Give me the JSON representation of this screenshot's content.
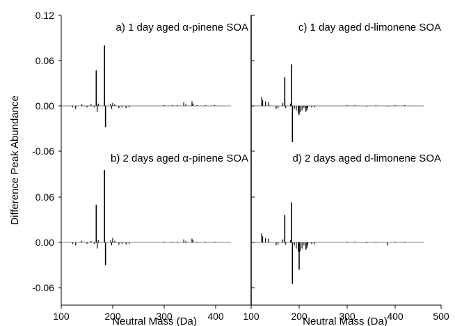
{
  "figure": {
    "ylabel": "Difference Peak Abundance",
    "xlabel": "Neutral Mass (Da)",
    "y_tick_labels_top": [
      "0.12",
      "0.06",
      "0.00",
      "-0.06"
    ],
    "y_tick_labels_bottom": [
      "0.06",
      "0.00",
      "-0.06"
    ],
    "x_tick_labels_left": [
      "100",
      "200",
      "300",
      "400"
    ],
    "x_tick_labels_right": [
      "100",
      "200",
      "300",
      "400",
      "500"
    ],
    "colors": {
      "bars": "#000000",
      "axes": "#000000",
      "background": "#ffffff"
    }
  },
  "chart_data": [
    {
      "type": "bar",
      "panel": "a",
      "title": "a) 1 day aged α-pinene SOA",
      "xlabel": "Neutral Mass (Da)",
      "ylabel": "Difference Peak Abundance",
      "xlim": [
        100,
        420
      ],
      "ylim": [
        -0.06,
        0.12
      ],
      "grid": false,
      "x": [
        122,
        128,
        140,
        150,
        158,
        164,
        168,
        170,
        172,
        184,
        186,
        196,
        198,
        200,
        204,
        212,
        218,
        226,
        232,
        300,
        316,
        326,
        338,
        342,
        354,
        356,
        364,
        380,
        398
      ],
      "values": [
        -0.002,
        -0.004,
        0.002,
        -0.002,
        0.002,
        -0.002,
        0.047,
        -0.008,
        0.003,
        0.08,
        -0.028,
        0.003,
        -0.004,
        0.004,
        0.002,
        -0.003,
        -0.002,
        -0.003,
        -0.002,
        0.001,
        0.001,
        0.001,
        0.005,
        0.002,
        0.006,
        0.003,
        0.001,
        0.001,
        0.001
      ]
    },
    {
      "type": "bar",
      "panel": "b",
      "title": "b) 2 days aged α-pinene SOA",
      "xlabel": "Neutral Mass (Da)",
      "ylabel": "Difference Peak Abundance",
      "xlim": [
        100,
        420
      ],
      "ylim": [
        -0.06,
        0.12
      ],
      "grid": false,
      "x": [
        122,
        128,
        140,
        150,
        158,
        164,
        168,
        170,
        172,
        184,
        186,
        196,
        198,
        200,
        204,
        212,
        218,
        226,
        232,
        300,
        316,
        326,
        338,
        342,
        354,
        356,
        364,
        380,
        398
      ],
      "values": [
        -0.002,
        -0.004,
        0.002,
        -0.002,
        0.002,
        -0.002,
        0.05,
        -0.008,
        0.003,
        0.096,
        -0.03,
        0.003,
        -0.004,
        0.006,
        0.002,
        -0.003,
        -0.002,
        -0.003,
        -0.002,
        0.001,
        0.001,
        0.001,
        0.004,
        0.002,
        0.005,
        0.003,
        0.001,
        0.001,
        0.001
      ]
    },
    {
      "type": "bar",
      "panel": "c",
      "title": "c) 1 day aged d-limonene SOA",
      "xlabel": "Neutral Mass (Da)",
      "ylabel": "Difference Peak Abundance",
      "xlim": [
        100,
        500
      ],
      "ylim": [
        -0.06,
        0.12
      ],
      "grid": false,
      "x": [
        122,
        124,
        130,
        136,
        152,
        156,
        166,
        170,
        172,
        182,
        184,
        186,
        190,
        194,
        198,
        200,
        202,
        206,
        210,
        214,
        216,
        218,
        226,
        232,
        300,
        316,
        340,
        360,
        384,
        400,
        420
      ],
      "values": [
        0.012,
        0.008,
        0.006,
        0.005,
        -0.004,
        -0.003,
        0.004,
        0.038,
        -0.003,
        0.003,
        0.055,
        -0.048,
        -0.004,
        -0.006,
        -0.01,
        -0.012,
        -0.008,
        -0.006,
        -0.003,
        -0.008,
        -0.006,
        -0.003,
        -0.002,
        -0.002,
        0.001,
        0.001,
        -0.001,
        0.001,
        -0.001,
        0.001,
        0.001
      ]
    },
    {
      "type": "bar",
      "panel": "d",
      "title": "d) 2 days aged d-limonene SOA",
      "xlabel": "Neutral Mass (Da)",
      "ylabel": "Difference Peak Abundance",
      "xlim": [
        100,
        500
      ],
      "ylim": [
        -0.06,
        0.12
      ],
      "grid": false,
      "x": [
        122,
        124,
        130,
        136,
        152,
        156,
        166,
        170,
        172,
        182,
        184,
        186,
        190,
        194,
        198,
        200,
        202,
        206,
        210,
        214,
        216,
        218,
        226,
        232,
        300,
        316,
        340,
        360,
        384,
        400,
        420
      ],
      "values": [
        0.012,
        0.008,
        0.006,
        0.005,
        -0.004,
        -0.003,
        0.004,
        0.036,
        -0.003,
        0.003,
        0.053,
        -0.055,
        -0.004,
        -0.008,
        -0.012,
        -0.036,
        -0.012,
        -0.008,
        -0.004,
        -0.01,
        -0.008,
        -0.004,
        -0.002,
        -0.002,
        0.001,
        0.001,
        -0.001,
        0.001,
        -0.004,
        0.001,
        0.001
      ]
    }
  ]
}
